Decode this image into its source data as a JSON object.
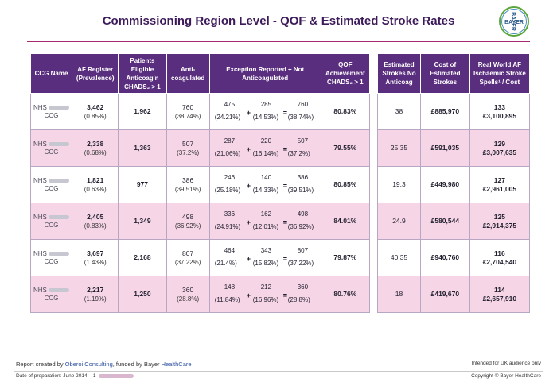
{
  "title": "Commissioning Region Level - QOF & Estimated Stroke Rates",
  "logo": {
    "text_h": "BAYER",
    "text_v": "BAYER"
  },
  "headers": {
    "ccg": "CCG Name",
    "af": "AF Register (Prevalence)",
    "eligible": "Patients Eligible Anticoag'n CHADS₂ > 1",
    "anticoag": "Anti-coagulated",
    "exception": "Exception Reported + Not Anticoagulated",
    "qof": "QOF Achievement CHADS₂ > 1",
    "est_no": "Estimated Strokes No Anticoag",
    "cost": "Cost of Estimated Strokes",
    "real": "Real World AF Ischaemic Stroke Spells¹ / Cost"
  },
  "rows": [
    {
      "ccg_top": "NHS",
      "ccg_bottom": "CCG",
      "af": "3,462",
      "af_pct": "(0.85%)",
      "eligible": "1,962",
      "anti": "760",
      "anti_pct": "(38.74%)",
      "a": "475",
      "a_pct": "(24.21%)",
      "b": "285",
      "b_pct": "(14.53%)",
      "c": "760",
      "c_pct": "(38.74%)",
      "qof": "80.83%",
      "est": "38",
      "cost": "£885,970",
      "spells": "133",
      "spell_cost": "£3,100,895"
    },
    {
      "ccg_top": "NHS",
      "ccg_bottom": "CCG",
      "af": "2,338",
      "af_pct": "(0.68%)",
      "eligible": "1,363",
      "anti": "507",
      "anti_pct": "(37.2%)",
      "a": "287",
      "a_pct": "(21.06%)",
      "b": "220",
      "b_pct": "(16.14%)",
      "c": "507",
      "c_pct": "(37.2%)",
      "qof": "79.55%",
      "est": "25.35",
      "cost": "£591,035",
      "spells": "129",
      "spell_cost": "£3,007,635"
    },
    {
      "ccg_top": "NHS",
      "ccg_bottom": "CCG",
      "af": "1,821",
      "af_pct": "(0.63%)",
      "eligible": "977",
      "anti": "386",
      "anti_pct": "(39.51%)",
      "a": "246",
      "a_pct": "(25.18%)",
      "b": "140",
      "b_pct": "(14.33%)",
      "c": "386",
      "c_pct": "(39.51%)",
      "qof": "80.85%",
      "est": "19.3",
      "cost": "£449,980",
      "spells": "127",
      "spell_cost": "£2,961,005"
    },
    {
      "ccg_top": "NHS",
      "ccg_bottom": "CCG",
      "af": "2,405",
      "af_pct": "(0.83%)",
      "eligible": "1,349",
      "anti": "498",
      "anti_pct": "(36.92%)",
      "a": "336",
      "a_pct": "(24.91%)",
      "b": "162",
      "b_pct": "(12.01%)",
      "c": "498",
      "c_pct": "(36.92%)",
      "qof": "84.01%",
      "est": "24.9",
      "cost": "£580,544",
      "spells": "125",
      "spell_cost": "£2,914,375"
    },
    {
      "ccg_top": "NHS",
      "ccg_bottom": "CCG",
      "af": "3,697",
      "af_pct": "(1.43%)",
      "eligible": "2,168",
      "anti": "807",
      "anti_pct": "(37.22%)",
      "a": "464",
      "a_pct": "(21.4%)",
      "b": "343",
      "b_pct": "(15.82%)",
      "c": "807",
      "c_pct": "(37.22%)",
      "qof": "79.87%",
      "est": "40.35",
      "cost": "£940,760",
      "spells": "116",
      "spell_cost": "£2,704,540"
    },
    {
      "ccg_top": "NHS",
      "ccg_bottom": "CCG",
      "af": "2,217",
      "af_pct": "(1.19%)",
      "eligible": "1,250",
      "anti": "360",
      "anti_pct": "(28.8%)",
      "a": "148",
      "a_pct": "(11.84%)",
      "b": "212",
      "b_pct": "(16.96%)",
      "c": "360",
      "c_pct": "(28.8%)",
      "qof": "80.76%",
      "est": "18",
      "cost": "£419,670",
      "spells": "114",
      "spell_cost": "£2,657,910"
    }
  ],
  "ops": {
    "plus": "+",
    "equals": "="
  },
  "footer": {
    "created_prefix": "Report created by ",
    "oberoi": "Oberoi Consulting",
    "funded": ", funded by Bayer ",
    "healthcare": "HealthCare",
    "date": "Date of preparation: June 2014",
    "footnote_num": "1",
    "audience": "Intended for UK audience only",
    "copyright": "Copyright © Bayer HealthCare"
  }
}
